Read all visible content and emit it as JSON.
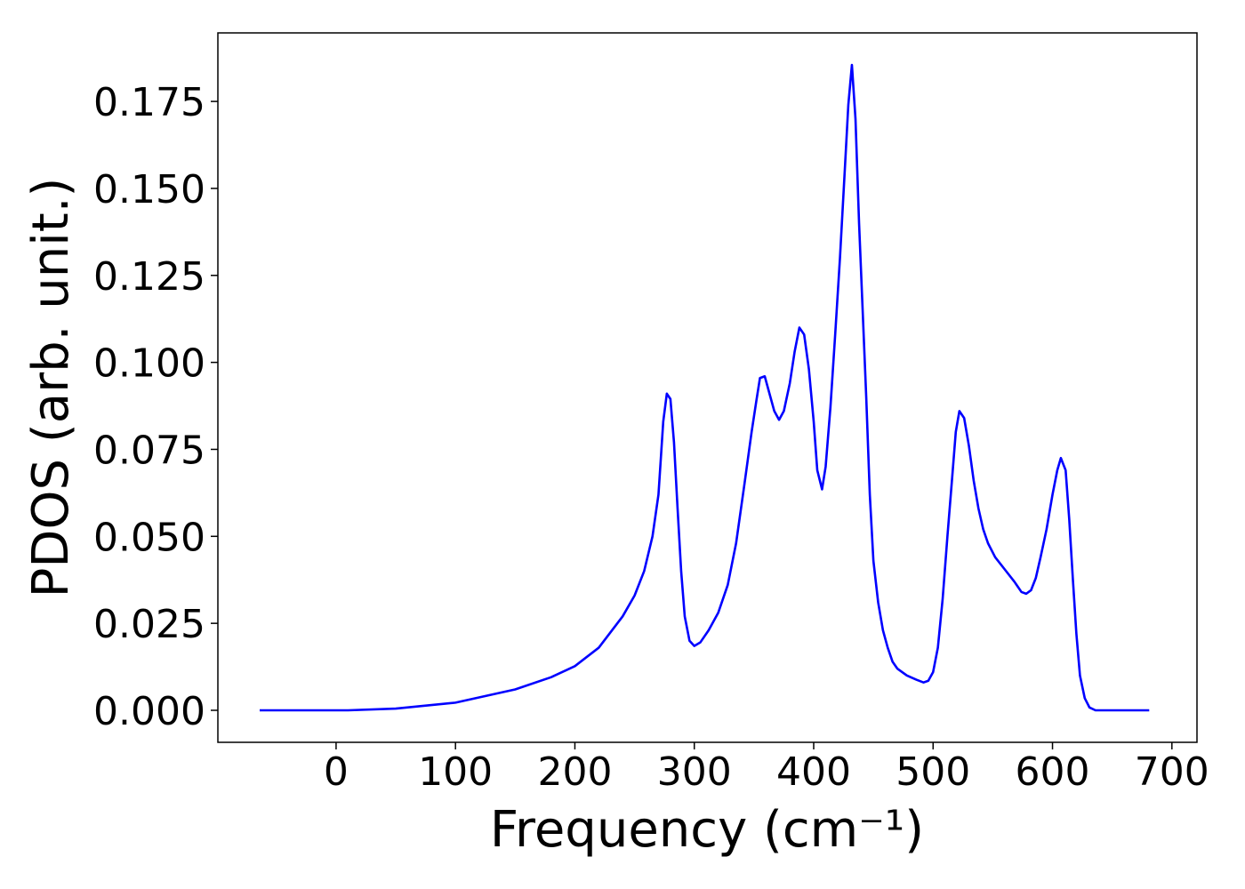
{
  "chart_data": {
    "type": "line",
    "xlabel": "Frequency (cm⁻¹)",
    "ylabel": "PDOS (arb. unit.)",
    "x": [
      -64,
      0,
      10,
      50,
      100,
      150,
      180,
      200,
      220,
      240,
      250,
      258,
      265,
      270,
      274,
      277,
      280,
      283,
      286,
      289,
      292,
      296,
      300,
      305,
      312,
      320,
      328,
      335,
      342,
      348,
      352,
      355,
      359,
      363,
      367,
      371,
      375,
      380,
      384,
      388,
      392,
      396,
      400,
      403,
      407,
      410,
      414,
      418,
      422,
      426,
      429,
      432,
      435,
      438,
      441,
      444,
      447,
      450,
      454,
      458,
      462,
      466,
      470,
      478,
      486,
      492,
      496,
      500,
      504,
      508,
      512,
      516,
      519,
      522,
      526,
      530,
      534,
      538,
      542,
      546,
      552,
      560,
      568,
      574,
      578,
      582,
      586,
      590,
      595,
      600,
      604,
      607,
      611,
      614,
      617,
      620,
      623,
      627,
      631,
      636,
      681
    ],
    "series": [
      {
        "color": "#0000ff",
        "values": [
          0,
          0,
          0,
          0.0005,
          0.0022,
          0.006,
          0.0095,
          0.0127,
          0.018,
          0.027,
          0.033,
          0.04,
          0.05,
          0.062,
          0.083,
          0.091,
          0.0895,
          0.077,
          0.058,
          0.04,
          0.027,
          0.02,
          0.0185,
          0.0195,
          0.023,
          0.028,
          0.036,
          0.048,
          0.065,
          0.08,
          0.089,
          0.0955,
          0.096,
          0.091,
          0.086,
          0.0835,
          0.086,
          0.094,
          0.103,
          0.11,
          0.108,
          0.098,
          0.083,
          0.069,
          0.0635,
          0.07,
          0.087,
          0.108,
          0.13,
          0.155,
          0.174,
          0.1855,
          0.17,
          0.14,
          0.115,
          0.09,
          0.062,
          0.043,
          0.031,
          0.023,
          0.018,
          0.014,
          0.012,
          0.01,
          0.0088,
          0.008,
          0.0085,
          0.011,
          0.018,
          0.032,
          0.05,
          0.067,
          0.08,
          0.086,
          0.084,
          0.076,
          0.066,
          0.058,
          0.052,
          0.048,
          0.044,
          0.0405,
          0.037,
          0.034,
          0.0335,
          0.0345,
          0.038,
          0.044,
          0.052,
          0.062,
          0.069,
          0.0725,
          0.069,
          0.055,
          0.038,
          0.022,
          0.01,
          0.0035,
          0.0008,
          0,
          0
        ]
      }
    ],
    "xlim": [
      -99,
      721
    ],
    "ylim": [
      -0.0092,
      0.1947
    ],
    "xticks": [
      0,
      100,
      200,
      300,
      400,
      500,
      600,
      700
    ],
    "yticks": [
      {
        "value": 0,
        "label": "0.000"
      },
      {
        "value": 0.025,
        "label": "0.025"
      },
      {
        "value": 0.05,
        "label": "0.050"
      },
      {
        "value": 0.075,
        "label": "0.075"
      },
      {
        "value": 0.1,
        "label": "0.100"
      },
      {
        "value": 0.125,
        "label": "0.125"
      },
      {
        "value": 0.15,
        "label": "0.150"
      },
      {
        "value": 0.175,
        "label": "0.175"
      }
    ]
  }
}
